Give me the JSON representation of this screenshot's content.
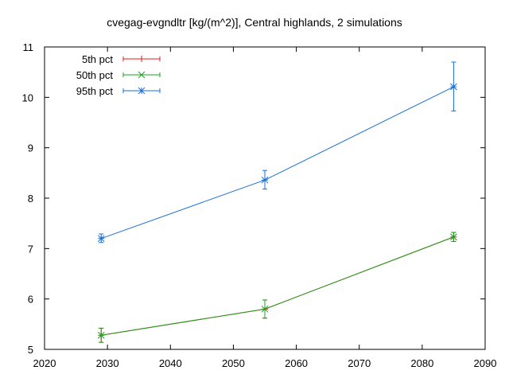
{
  "chart_data": {
    "type": "line",
    "title": "cvegag-evgndltr [kg/(m^2)], Central highlands, 2 simulations",
    "xlabel": "",
    "ylabel": "",
    "xlim": [
      2020,
      2090
    ],
    "ylim": [
      5,
      11
    ],
    "x_ticks": [
      "2020",
      "2030",
      "2040",
      "2050",
      "2060",
      "2070",
      "2080",
      "2090"
    ],
    "y_ticks": [
      "5",
      "6",
      "7",
      "8",
      "9",
      "10",
      "11"
    ],
    "grid": false,
    "legend_position": "top-left",
    "series": [
      {
        "name": "5th pct",
        "color": "#e41a1c",
        "marker": "plus",
        "points": [
          {
            "x": 2029,
            "y": 5.28,
            "ylow": 5.14,
            "yhigh": 5.42
          },
          {
            "x": 2055,
            "y": 5.8,
            "ylow": 5.62,
            "yhigh": 5.98
          },
          {
            "x": 2085,
            "y": 7.23,
            "ylow": 7.14,
            "yhigh": 7.32
          }
        ]
      },
      {
        "name": "50th pct",
        "color": "#1ca01c",
        "marker": "x",
        "points": [
          {
            "x": 2029,
            "y": 5.28,
            "ylow": 5.14,
            "yhigh": 5.42
          },
          {
            "x": 2055,
            "y": 5.8,
            "ylow": 5.62,
            "yhigh": 5.98
          },
          {
            "x": 2085,
            "y": 7.23,
            "ylow": 7.14,
            "yhigh": 7.32
          }
        ]
      },
      {
        "name": "95th pct",
        "color": "#1a6fd6",
        "marker": "star",
        "points": [
          {
            "x": 2029,
            "y": 7.2,
            "ylow": 7.12,
            "yhigh": 7.29
          },
          {
            "x": 2055,
            "y": 8.36,
            "ylow": 8.18,
            "yhigh": 8.55
          },
          {
            "x": 2085,
            "y": 10.21,
            "ylow": 9.73,
            "yhigh": 10.7
          }
        ]
      }
    ]
  }
}
